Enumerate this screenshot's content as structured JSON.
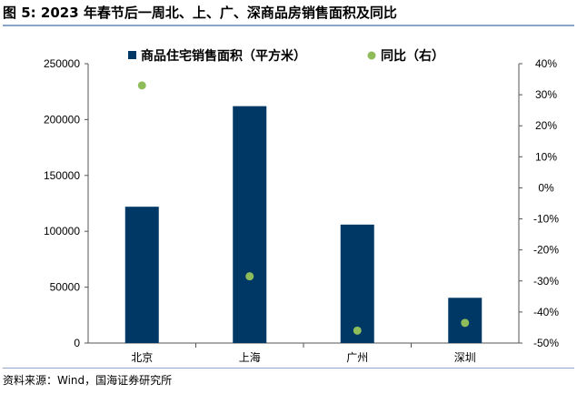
{
  "figure_title": "图 5:  2023 年春节后一周北、上、广、深商品房销售面积及同比",
  "source_text": "资料来源：Wind，国海证券研究所",
  "chart_data": {
    "type": "bar",
    "categories": [
      "北京",
      "上海",
      "广州",
      "深圳"
    ],
    "series": [
      {
        "name": "商品住宅销售面积（平方米）",
        "type": "bar",
        "axis": "left",
        "values": [
          122000,
          212000,
          106000,
          40500
        ],
        "color": "#003865"
      },
      {
        "name": "同比（右）",
        "type": "scatter",
        "axis": "right",
        "values": [
          33,
          -28.5,
          -46,
          -43.5
        ],
        "color": "#8fbc5a"
      }
    ],
    "y_left": {
      "lim": [
        0,
        250000
      ],
      "ticks": [
        "0",
        "50000",
        "100000",
        "150000",
        "200000",
        "250000"
      ]
    },
    "y_right": {
      "lim": [
        -50,
        40
      ],
      "ticks": [
        "-50%",
        "-40%",
        "-30%",
        "-20%",
        "-10%",
        "0%",
        "10%",
        "20%",
        "30%",
        "40%"
      ]
    },
    "grid": false,
    "legend": "top"
  }
}
